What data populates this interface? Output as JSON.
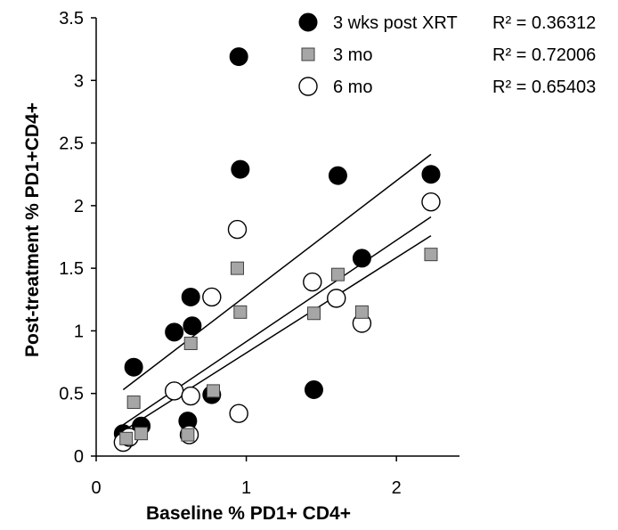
{
  "chart_data": {
    "type": "scatter",
    "title": "",
    "xlabel": "Baseline % PD1+ CD4+",
    "ylabel": "Post-treatment % PD1+CD4+",
    "xlim": [
      0,
      2.42
    ],
    "ylim": [
      0,
      3.5
    ],
    "x_ticks": [
      "0",
      "1",
      "2"
    ],
    "y_ticks": [
      "0",
      "0.5",
      "1",
      "1.5",
      "2",
      "2.5",
      "3",
      "3.5"
    ],
    "grid": false,
    "legend_position": "top-right",
    "series": [
      {
        "name": "3 wks post XRT",
        "marker": "filled-circle",
        "color": "#000000",
        "r2": "R² = 0.36312",
        "points": [
          [
            0.18,
            0.18
          ],
          [
            0.25,
            0.71
          ],
          [
            0.3,
            0.24
          ],
          [
            0.52,
            0.99
          ],
          [
            0.61,
            0.28
          ],
          [
            0.63,
            1.27
          ],
          [
            0.64,
            1.04
          ],
          [
            0.77,
            0.49
          ],
          [
            0.95,
            3.19
          ],
          [
            0.96,
            2.29
          ],
          [
            1.45,
            0.53
          ],
          [
            1.61,
            2.24
          ],
          [
            1.77,
            1.58
          ],
          [
            2.23,
            2.25
          ]
        ],
        "fit": [
          [
            0.18,
            0.53
          ],
          [
            2.23,
            2.41
          ]
        ]
      },
      {
        "name": "3 mo",
        "marker": "gray-square",
        "color": "#a6a6a6",
        "r2": "R² = 0.72006",
        "points": [
          [
            0.2,
            0.14
          ],
          [
            0.25,
            0.43
          ],
          [
            0.3,
            0.18
          ],
          [
            0.61,
            0.17
          ],
          [
            0.63,
            0.9
          ],
          [
            0.78,
            0.52
          ],
          [
            0.94,
            1.5
          ],
          [
            0.96,
            1.15
          ],
          [
            1.45,
            1.14
          ],
          [
            1.61,
            1.45
          ],
          [
            1.77,
            1.15
          ],
          [
            2.23,
            1.61
          ]
        ],
        "fit": [
          [
            0.18,
            0.2
          ],
          [
            2.23,
            1.76
          ]
        ]
      },
      {
        "name": "6 mo",
        "marker": "open-circle",
        "color": "#ffffff",
        "r2": "R² = 0.65403",
        "points": [
          [
            0.18,
            0.11
          ],
          [
            0.22,
            0.15
          ],
          [
            0.52,
            0.52
          ],
          [
            0.63,
            0.48
          ],
          [
            0.62,
            0.17
          ],
          [
            0.77,
            1.27
          ],
          [
            0.94,
            1.81
          ],
          [
            0.95,
            0.34
          ],
          [
            1.44,
            1.39
          ],
          [
            1.6,
            1.26
          ],
          [
            1.77,
            1.06
          ],
          [
            2.23,
            2.03
          ]
        ],
        "fit": [
          [
            0.18,
            0.25
          ],
          [
            2.23,
            1.91
          ]
        ]
      }
    ]
  }
}
